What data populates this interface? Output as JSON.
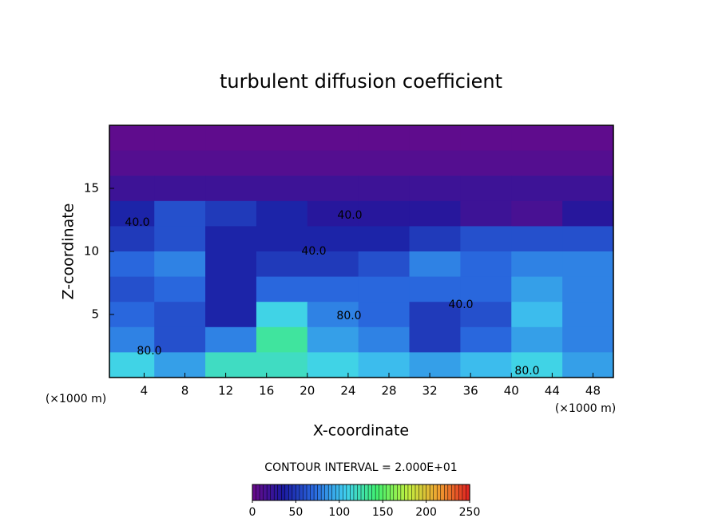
{
  "chart_data": {
    "type": "heatmap",
    "title": "turbulent diffusion coefficient",
    "xlabel": "X-coordinate",
    "ylabel": "Z-coordinate",
    "x_unit": "(×1000 m)",
    "x_unit_right": "(×1000 m)",
    "contour_text": "CONTOUR INTERVAL = 2.000E+01",
    "xlim": [
      0.6,
      50
    ],
    "ylim": [
      0,
      20
    ],
    "xticks": [
      4,
      8,
      12,
      16,
      20,
      24,
      28,
      32,
      36,
      40,
      44,
      48
    ],
    "yticks": [
      5,
      10,
      15
    ],
    "x_edges": [
      0,
      5,
      10,
      15,
      20,
      25,
      30,
      35,
      40,
      45,
      50
    ],
    "y_edges": [
      20,
      18,
      16,
      14,
      12,
      10,
      8,
      6,
      4,
      2,
      0
    ],
    "z": [
      [
        5,
        5,
        5,
        5,
        5,
        5,
        5,
        5,
        5,
        5
      ],
      [
        10,
        10,
        10,
        10,
        10,
        10,
        10,
        10,
        10,
        10
      ],
      [
        20,
        20,
        20,
        20,
        20,
        20,
        20,
        20,
        20,
        20
      ],
      [
        40,
        60,
        50,
        40,
        30,
        30,
        30,
        20,
        15,
        30
      ],
      [
        50,
        60,
        40,
        40,
        40,
        40,
        50,
        60,
        60,
        60
      ],
      [
        70,
        80,
        40,
        50,
        50,
        60,
        80,
        70,
        80,
        80
      ],
      [
        60,
        70,
        40,
        70,
        70,
        70,
        70,
        70,
        90,
        80
      ],
      [
        70,
        60,
        40,
        110,
        80,
        70,
        50,
        60,
        100,
        80
      ],
      [
        80,
        60,
        80,
        130,
        90,
        80,
        50,
        70,
        90,
        80
      ],
      [
        110,
        90,
        120,
        120,
        110,
        100,
        90,
        100,
        110,
        90
      ]
    ],
    "clim": [
      0,
      250
    ],
    "cticks": [
      0,
      50,
      100,
      150,
      200,
      250
    ],
    "colormap": [
      "#6a0a8a",
      "#1a1aa0",
      "#2a6ae0",
      "#40d0f0",
      "#40f070",
      "#c0f040",
      "#f0a030",
      "#e02020"
    ],
    "contour_labels": [
      "40.0",
      "40.0",
      "40.0",
      "40.0",
      "80.0",
      "80.0",
      "80.0"
    ]
  }
}
